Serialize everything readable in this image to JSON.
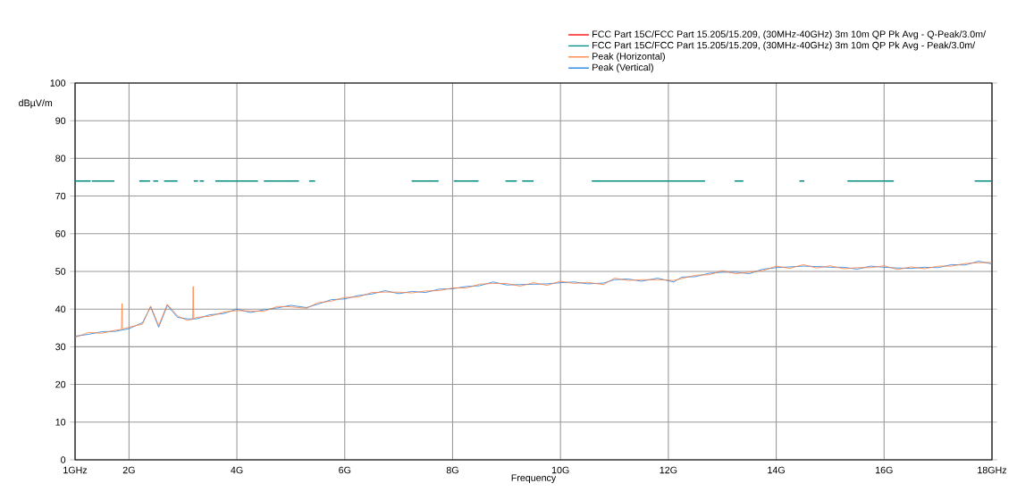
{
  "chart_data": {
    "type": "line",
    "xlabel": "Frequency",
    "ylabel": "dBµV/m",
    "xlim": [
      1,
      18
    ],
    "ylim": [
      0,
      100
    ],
    "xticks": [
      {
        "value": 1,
        "label": "1GHz"
      },
      {
        "value": 2,
        "label": "2G"
      },
      {
        "value": 4,
        "label": "4G"
      },
      {
        "value": 6,
        "label": "6G"
      },
      {
        "value": 8,
        "label": "8G"
      },
      {
        "value": 10,
        "label": "10G"
      },
      {
        "value": 12,
        "label": "12G"
      },
      {
        "value": 14,
        "label": "14G"
      },
      {
        "value": 16,
        "label": "16G"
      },
      {
        "value": 18,
        "label": "18GHz"
      }
    ],
    "yticks": [
      0,
      10,
      20,
      30,
      40,
      50,
      60,
      70,
      80,
      90,
      100
    ],
    "grid": true,
    "legend": "top right",
    "marker": "none",
    "series": [
      {
        "name": "FCC Part 15C/FCC Part 15.205/15.209, (30MHz-40GHz) 3m 10m QP Pk Avg  - Q-Peak/3.0m/",
        "color": "#ff0000"
      },
      {
        "name": "FCC Part 15C/FCC Part 15.205/15.209, (30MHz-40GHz) 3m 10m QP Pk Avg  - Peak/3.0m/",
        "color": "#008b80",
        "x": [
          1.0,
          1.29,
          1.3,
          1.31,
          1.73,
          1.9,
          2.19,
          2.39,
          2.42,
          2.45,
          2.54,
          2.6,
          2.65,
          2.9,
          3.05,
          3.2,
          3.28,
          3.29,
          3.31,
          3.39,
          3.5,
          3.6,
          4.39,
          4.45,
          4.5,
          5.15,
          5.25,
          5.34,
          5.45,
          6.3,
          7.24,
          7.74,
          7.9,
          8.02,
          8.48,
          8.7,
          8.98,
          9.19,
          9.25,
          9.29,
          9.5,
          10.0,
          10.58,
          12.68,
          13.0,
          13.23,
          13.39,
          14.0,
          14.43,
          14.52,
          15.0,
          15.32,
          16.18,
          17.0,
          17.68,
          18.0
        ],
        "values": [
          74,
          74,
          null,
          74,
          74,
          null,
          74,
          74,
          null,
          74,
          74,
          null,
          74,
          74,
          null,
          74,
          74,
          null,
          74,
          74,
          null,
          74,
          74,
          null,
          74,
          74,
          null,
          74,
          74,
          null,
          74,
          74,
          null,
          74,
          74,
          null,
          74,
          74,
          null,
          74,
          74,
          null,
          74,
          74,
          null,
          74,
          74,
          null,
          74,
          74,
          null,
          74,
          74,
          null,
          74,
          74
        ]
      },
      {
        "name": "Peak (Horizontal)",
        "color": "#ff7f3f",
        "x": [
          1.0,
          1.25,
          1.5,
          1.75,
          1.86,
          1.87,
          1.88,
          2.0,
          2.25,
          2.4,
          2.55,
          2.71,
          2.9,
          3.08,
          3.18,
          3.19,
          3.2,
          3.25,
          3.5,
          3.75,
          4.0,
          4.25,
          4.5,
          4.75,
          5.0,
          5.29,
          5.5,
          5.75,
          6.0,
          6.25,
          6.5,
          6.75,
          7.0,
          7.25,
          7.5,
          7.75,
          8.0,
          8.25,
          8.5,
          8.75,
          9.0,
          9.25,
          9.5,
          9.75,
          10.0,
          10.25,
          10.5,
          10.8,
          11.0,
          11.25,
          11.5,
          11.8,
          12.1,
          12.25,
          12.5,
          12.75,
          13.0,
          13.25,
          13.5,
          13.75,
          14.0,
          14.25,
          14.5,
          14.75,
          15.0,
          15.25,
          15.5,
          15.75,
          16.0,
          16.25,
          16.5,
          16.75,
          17.0,
          17.25,
          17.5,
          17.75,
          18.0
        ],
        "values": [
          32.5,
          33.8,
          33.6,
          34.4,
          34.6,
          41.5,
          34.7,
          35.2,
          36.0,
          40.8,
          35.6,
          41.3,
          38.2,
          37.0,
          37.3,
          46.0,
          37.4,
          37.8,
          38.1,
          39.2,
          39.6,
          39.5,
          39.4,
          40.7,
          40.6,
          40.2,
          41.7,
          42.1,
          43.1,
          43.2,
          44.4,
          44.5,
          44.5,
          44.3,
          44.8,
          44.9,
          45.6,
          45.6,
          46.6,
          46.8,
          46.8,
          46.1,
          47.0,
          46.3,
          47.4,
          46.8,
          47.1,
          46.5,
          48.2,
          47.6,
          47.8,
          47.8,
          47.6,
          48.1,
          49.0,
          49.1,
          50.2,
          49.4,
          49.8,
          50.2,
          51.4,
          50.8,
          51.8,
          50.9,
          51.5,
          50.7,
          51.0,
          51.0,
          51.5,
          50.5,
          51.2,
          50.7,
          51.4,
          51.4,
          52.1,
          52.3,
          52.4
        ]
      },
      {
        "name": "Peak (Vertical)",
        "color": "#1e7fe0",
        "x": [
          1.0,
          1.25,
          1.5,
          1.75,
          2.0,
          2.25,
          2.4,
          2.55,
          2.71,
          2.9,
          3.08,
          3.25,
          3.5,
          3.75,
          4.0,
          4.25,
          4.5,
          4.75,
          5.0,
          5.29,
          5.5,
          5.75,
          6.0,
          6.25,
          6.5,
          6.75,
          7.0,
          7.25,
          7.5,
          7.75,
          8.0,
          8.25,
          8.5,
          8.75,
          9.0,
          9.25,
          9.5,
          9.75,
          10.0,
          10.25,
          10.5,
          10.8,
          11.0,
          11.25,
          11.5,
          11.8,
          12.1,
          12.25,
          12.5,
          12.75,
          13.0,
          13.25,
          13.5,
          13.75,
          14.0,
          14.25,
          14.5,
          14.75,
          15.0,
          15.25,
          15.5,
          15.75,
          16.0,
          16.25,
          16.5,
          16.75,
          17.0,
          17.25,
          17.5,
          17.75,
          18.0
        ],
        "values": [
          32.8,
          33.3,
          34.0,
          34.1,
          34.8,
          36.4,
          40.6,
          35.2,
          41.0,
          37.8,
          37.4,
          37.4,
          38.5,
          38.8,
          40.0,
          39.1,
          39.8,
          40.3,
          41.0,
          40.4,
          41.3,
          42.5,
          42.7,
          43.6,
          44.0,
          44.9,
          44.1,
          44.7,
          44.4,
          45.3,
          45.4,
          46.0,
          46.2,
          47.2,
          46.4,
          46.5,
          46.6,
          46.7,
          47.0,
          47.2,
          46.7,
          46.9,
          47.8,
          48.0,
          47.4,
          48.2,
          47.2,
          48.5,
          48.6,
          49.5,
          49.8,
          49.8,
          49.4,
          50.6,
          51.0,
          51.2,
          51.4,
          51.3,
          51.1,
          51.1,
          50.6,
          51.4,
          51.1,
          50.9,
          50.8,
          51.1,
          51.0,
          51.8,
          51.7,
          52.7,
          52.0
        ]
      }
    ]
  }
}
